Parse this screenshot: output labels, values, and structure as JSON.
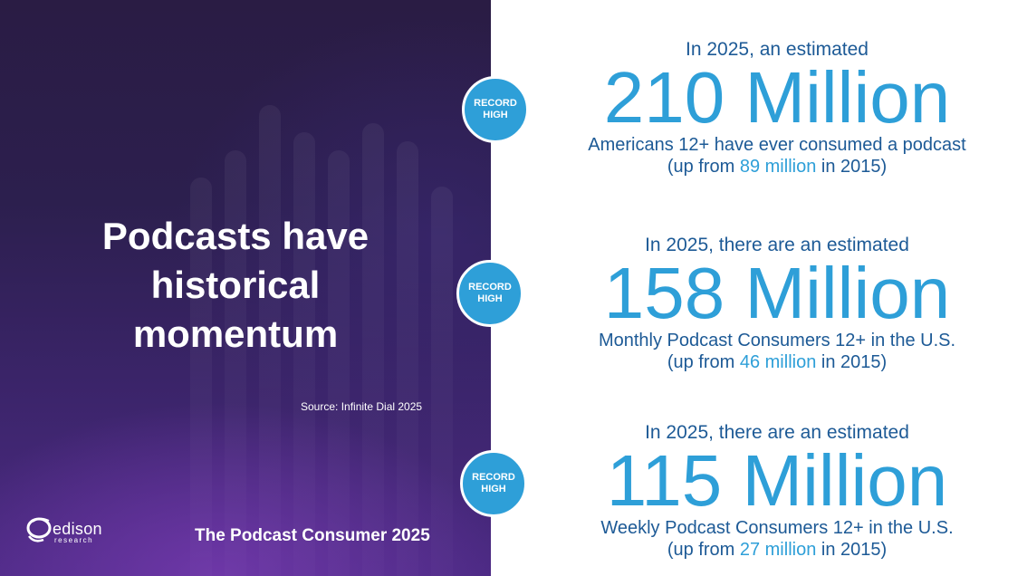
{
  "left": {
    "title_lines": [
      "Podcasts have",
      "historical",
      "momentum"
    ],
    "source": "Source: Infinite Dial 2025",
    "footer_title": "The Podcast Consumer 2025",
    "logo": {
      "word": "edison",
      "sub": "research"
    }
  },
  "badge": {
    "line1": "RECORD",
    "line2": "HIGH"
  },
  "stats": [
    {
      "intro": "In 2025, an estimated",
      "big": "210 Million",
      "desc_pre": "Americans 12+ have ever consumed a podcast",
      "desc_mid": "",
      "desc_post": "",
      "paren_pre": "(up from ",
      "paren_hl": "89 million",
      "paren_post": " in 2015)"
    },
    {
      "intro": "In 2025, there are an estimated",
      "big": "158 Million",
      "desc_pre": "Monthly",
      "desc_mid": " Podcast Consumers 12+ ",
      "desc_post": "in the U.S.",
      "paren_pre": "(up from ",
      "paren_hl": "46 million",
      "paren_post": " in 2015)"
    },
    {
      "intro": "In 2025, there are an estimated",
      "big": "115 Million",
      "desc_pre": "Weekly",
      "desc_mid": " Podcast Consumers 12+ ",
      "desc_post": "in the U.S.",
      "paren_pre": "(up from ",
      "paren_hl": "27 million",
      "paren_post": " in 2015)"
    }
  ],
  "colors": {
    "accent": "#2e9fd8",
    "text_dark_blue": "#1d5a96",
    "panel_purple": "#2c1f4e"
  },
  "icons": {
    "logo": "edison-logo-icon"
  }
}
